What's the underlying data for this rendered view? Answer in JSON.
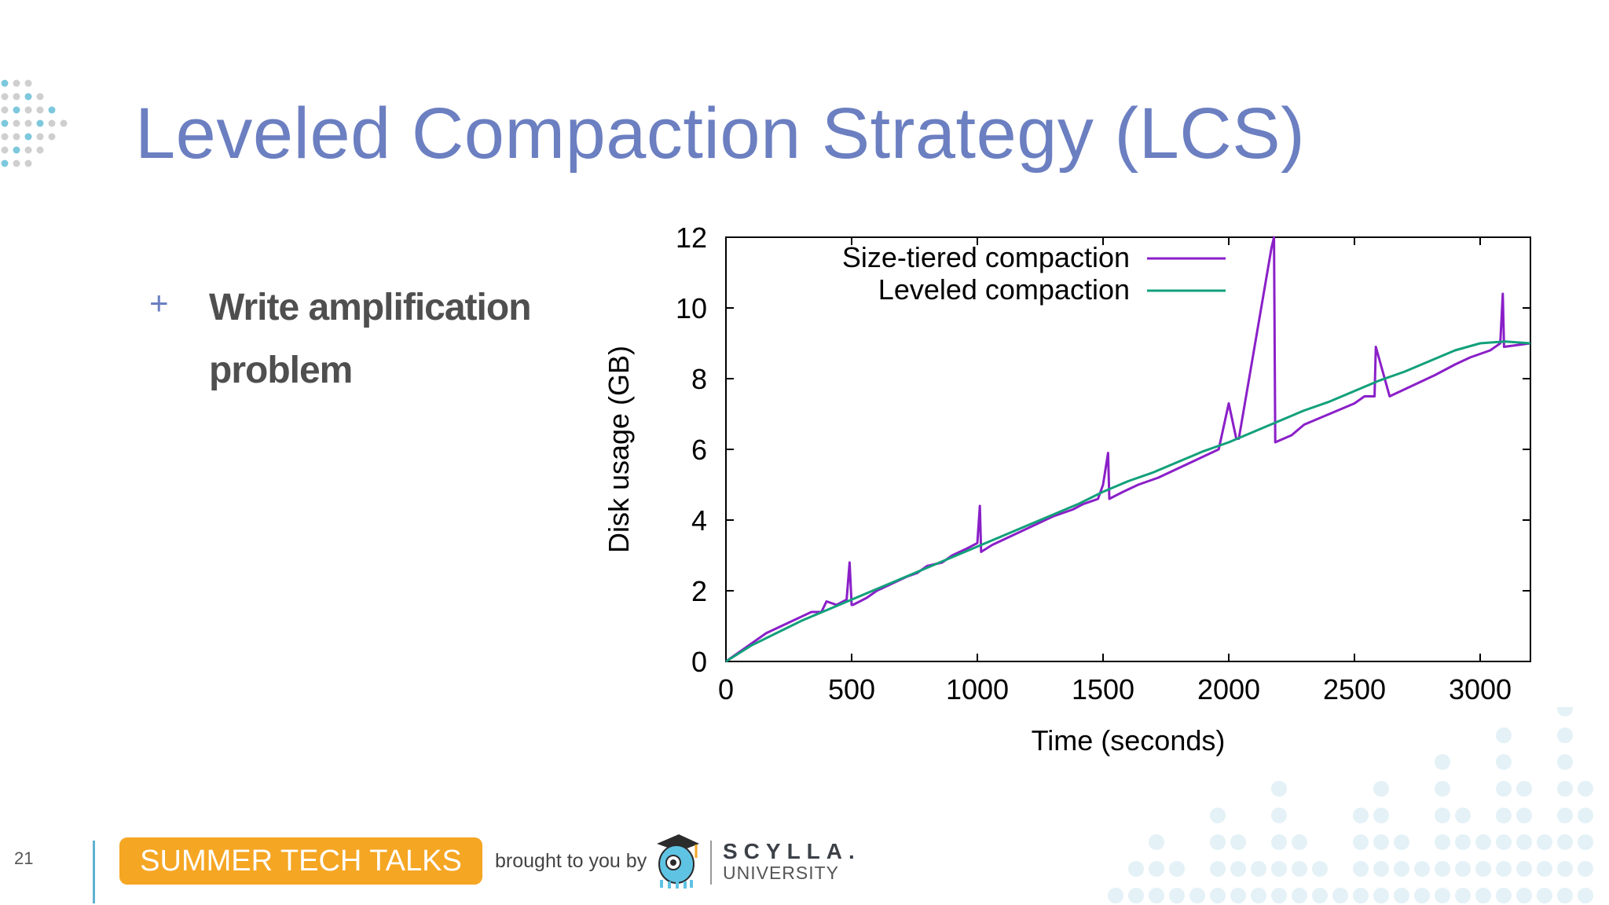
{
  "slide": {
    "title": "Leveled Compaction Strategy (LCS)",
    "bullet_marker": "+",
    "bullet_text": "Write amplification problem",
    "page_number": "21"
  },
  "footer": {
    "event_label": "SUMMER TECH TALKS",
    "brought_by": "brought to you by",
    "brand_name": "SCYLLA.",
    "brand_sub": "UNIVERSITY"
  },
  "colors": {
    "title": "#6b7fc1",
    "badge": "#f5a623",
    "size_tiered": "#8a1fc8",
    "leveled": "#12a07a"
  },
  "chart_data": {
    "type": "line",
    "title": "",
    "xlabel": "Time (seconds)",
    "ylabel": "Disk usage (GB)",
    "xlim": [
      0,
      3200
    ],
    "ylim": [
      0,
      12
    ],
    "xticks": [
      0,
      500,
      1000,
      1500,
      2000,
      2500,
      3000
    ],
    "yticks": [
      0,
      2,
      4,
      6,
      8,
      10,
      12
    ],
    "legend_position": "top-left",
    "series": [
      {
        "name": "Size-tiered compaction",
        "color": "#8a1fc8",
        "x": [
          0,
          40,
          100,
          160,
          220,
          280,
          340,
          380,
          400,
          440,
          480,
          492,
          500,
          505,
          560,
          600,
          660,
          720,
          760,
          800,
          860,
          900,
          960,
          1000,
          1010,
          1015,
          1060,
          1120,
          1180,
          1240,
          1300,
          1380,
          1420,
          1480,
          1500,
          1520,
          1525,
          1580,
          1640,
          1720,
          1780,
          1840,
          1900,
          1960,
          2000,
          2030,
          2040,
          2170,
          2180,
          2185,
          2250,
          2300,
          2400,
          2500,
          2540,
          2580,
          2585,
          2640,
          2700,
          2760,
          2820,
          2900,
          2960,
          3040,
          3080,
          3090,
          3095,
          3200
        ],
        "y": [
          0,
          0.2,
          0.5,
          0.8,
          1.0,
          1.2,
          1.4,
          1.4,
          1.7,
          1.6,
          1.75,
          2.8,
          1.6,
          1.6,
          1.8,
          2.0,
          2.2,
          2.4,
          2.5,
          2.7,
          2.8,
          3.0,
          3.2,
          3.35,
          4.4,
          3.1,
          3.3,
          3.5,
          3.7,
          3.9,
          4.1,
          4.3,
          4.45,
          4.6,
          5.0,
          5.9,
          4.6,
          4.8,
          5.0,
          5.2,
          5.4,
          5.6,
          5.8,
          6.0,
          7.3,
          6.3,
          6.3,
          11.7,
          12.0,
          6.2,
          6.4,
          6.7,
          7.0,
          7.3,
          7.5,
          7.5,
          8.9,
          7.5,
          7.7,
          7.9,
          8.1,
          8.4,
          8.6,
          8.8,
          9.0,
          10.4,
          8.9,
          9.0
        ]
      },
      {
        "name": "Leveled compaction",
        "color": "#12a07a",
        "x": [
          0,
          100,
          200,
          300,
          400,
          500,
          600,
          700,
          800,
          900,
          1000,
          1100,
          1200,
          1300,
          1400,
          1500,
          1600,
          1700,
          1800,
          1900,
          2000,
          2100,
          2200,
          2300,
          2400,
          2500,
          2600,
          2700,
          2800,
          2900,
          3000,
          3100,
          3200
        ],
        "y": [
          0,
          0.45,
          0.8,
          1.15,
          1.45,
          1.75,
          2.05,
          2.35,
          2.65,
          2.95,
          3.25,
          3.55,
          3.85,
          4.15,
          4.45,
          4.8,
          5.1,
          5.35,
          5.65,
          5.95,
          6.2,
          6.5,
          6.8,
          7.1,
          7.35,
          7.65,
          7.95,
          8.2,
          8.5,
          8.8,
          9.0,
          9.05,
          9.0
        ]
      }
    ]
  }
}
